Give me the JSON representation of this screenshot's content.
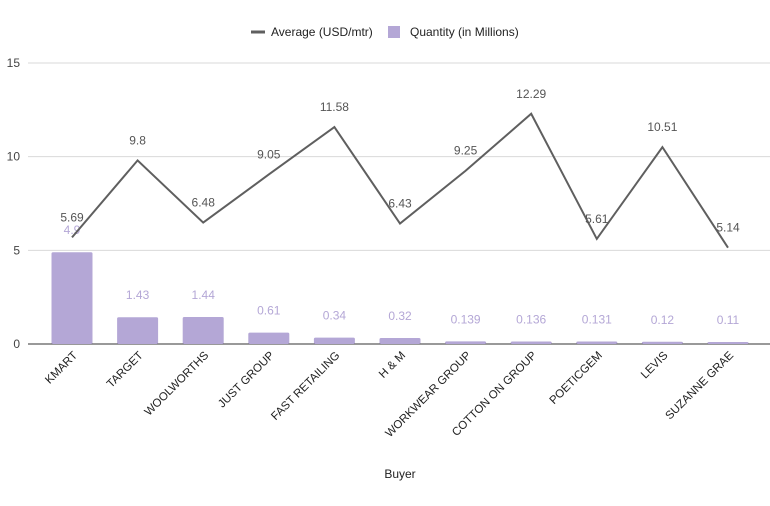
{
  "chart_data": {
    "type": "bar",
    "xlabel": "Buyer",
    "ylabel": "",
    "ylim": [
      0,
      15
    ],
    "yticks": [
      0,
      5,
      10,
      15
    ],
    "grid": true,
    "legend_position": "top-center",
    "categories": [
      "KMART",
      "TARGET",
      "WOOLWORTHS",
      "JUST GROUP",
      "FAST RETAILING",
      "H & M",
      "WORKWEAR GROUP",
      "COTTON ON GROUP",
      "POETICGEM",
      "LEVIS",
      "SUZANNE GRAE"
    ],
    "series": [
      {
        "name": "Average (USD/mtr)",
        "type": "line",
        "color": "#5f5f5f",
        "values": [
          5.69,
          9.8,
          6.48,
          9.05,
          11.58,
          6.43,
          9.25,
          12.29,
          5.61,
          10.51,
          5.14
        ],
        "labels": [
          "5.69",
          "9.8",
          "6.48",
          "9.05",
          "11.58",
          "6.43",
          "9.25",
          "12.29",
          "5.61",
          "10.51",
          "5.14"
        ]
      },
      {
        "name": "Quantity (in Millions)",
        "type": "bar",
        "color": "#b4a7d6",
        "values": [
          4.9,
          1.43,
          1.44,
          0.61,
          0.34,
          0.32,
          0.139,
          0.136,
          0.131,
          0.12,
          0.11
        ],
        "labels": [
          "4.9",
          "1.43",
          "1.44",
          "0.61",
          "0.34",
          "0.32",
          "0.139",
          "0.136",
          "0.131",
          "0.12",
          "0.11"
        ]
      }
    ]
  }
}
